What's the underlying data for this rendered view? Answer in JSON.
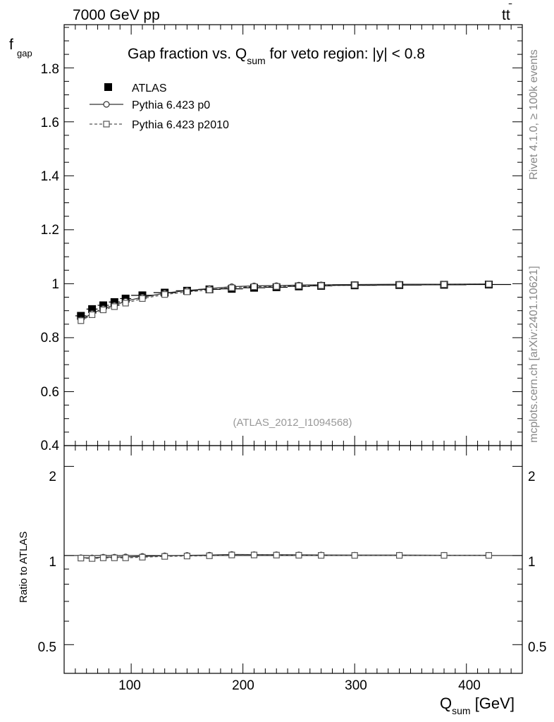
{
  "header": {
    "left": "7000 GeV pp",
    "right_main": "tt",
    "right_bar": "̄"
  },
  "side": {
    "version": "Rivet 4.1.0, ≥ 100k events",
    "source": "mcplots.cern.ch [arXiv:2401.10621]"
  },
  "main_plot": {
    "title_part1": "Gap fraction vs. Q",
    "title_sub": "sum",
    "title_part2": " for veto region: |y| < 0.8",
    "ylabel_main": "f",
    "ylabel_sub": "gap",
    "analysis_id": "(ATLAS_2012_I1094568)",
    "yticks": [
      "0.4",
      "0.6",
      "0.8",
      "1",
      "1.2",
      "1.4",
      "1.6",
      "1.8"
    ]
  },
  "ratio_plot": {
    "ylabel": "Ratio to ATLAS",
    "yticks_left": [
      "0.5",
      "1",
      "2"
    ],
    "yticks_right": [
      "0.5",
      "1",
      "2"
    ]
  },
  "xaxis": {
    "label_main": "Q",
    "label_sub": "sum",
    "label_unit": " [GeV]",
    "ticks": [
      "100",
      "200",
      "300",
      "400"
    ]
  },
  "legend": {
    "atlas": "ATLAS",
    "p0": "Pythia 6.423 p0",
    "p2010": "Pythia 6.423 p2010"
  },
  "chart_data": {
    "type": "scatter",
    "title": "Gap fraction vs. Q_sum for veto region: |y| < 0.8",
    "xlabel": "Q_sum [GeV]",
    "ylabel": "f_gap",
    "xlim": [
      40,
      450
    ],
    "ylim": [
      0.4,
      1.96
    ],
    "ratio_ylim": [
      0.4,
      2.35
    ],
    "legend_position": "top-left",
    "x": [
      55,
      65,
      75,
      85,
      95,
      110,
      130,
      150,
      170,
      190,
      210,
      230,
      250,
      270,
      300,
      340,
      380,
      420
    ],
    "xerr": [
      5,
      5,
      5,
      5,
      5,
      10,
      10,
      10,
      10,
      10,
      10,
      10,
      10,
      10,
      20,
      20,
      20,
      20
    ],
    "series": [
      {
        "name": "ATLAS",
        "values": [
          0.881,
          0.906,
          0.92,
          0.932,
          0.945,
          0.957,
          0.967,
          0.974,
          0.979,
          0.981,
          0.985,
          0.987,
          0.99,
          0.992,
          0.994,
          0.995,
          0.996,
          0.997
        ]
      },
      {
        "name": "Pythia 6.423 p0",
        "values": [
          0.866,
          0.89,
          0.908,
          0.92,
          0.935,
          0.95,
          0.965,
          0.975,
          0.982,
          0.989,
          0.992,
          0.993,
          0.995,
          0.996,
          0.997,
          0.998,
          0.998,
          0.999
        ]
      },
      {
        "name": "Pythia 6.423 p2010",
        "values": [
          0.863,
          0.885,
          0.903,
          0.915,
          0.928,
          0.945,
          0.96,
          0.97,
          0.977,
          0.985,
          0.989,
          0.99,
          0.992,
          0.993,
          0.995,
          0.996,
          0.997,
          0.998
        ]
      }
    ],
    "ratio_series": [
      {
        "name": "Pythia 6.423 p0",
        "values": [
          0.983,
          0.982,
          0.987,
          0.987,
          0.989,
          0.993,
          0.998,
          1.001,
          1.003,
          1.008,
          1.007,
          1.006,
          1.005,
          1.004,
          1.003,
          1.003,
          1.002,
          1.002
        ]
      },
      {
        "name": "Pythia 6.423 p2010",
        "values": [
          0.98,
          0.977,
          0.982,
          0.982,
          0.982,
          0.987,
          0.993,
          0.996,
          0.998,
          1.004,
          1.004,
          1.003,
          1.002,
          1.001,
          1.001,
          1.001,
          1.001,
          1.001
        ]
      }
    ],
    "colors": {
      "atlas": "#000000",
      "p0": "#333333",
      "p2010": "#555555",
      "watermark": "#999999",
      "sidetext": "#888888"
    }
  }
}
